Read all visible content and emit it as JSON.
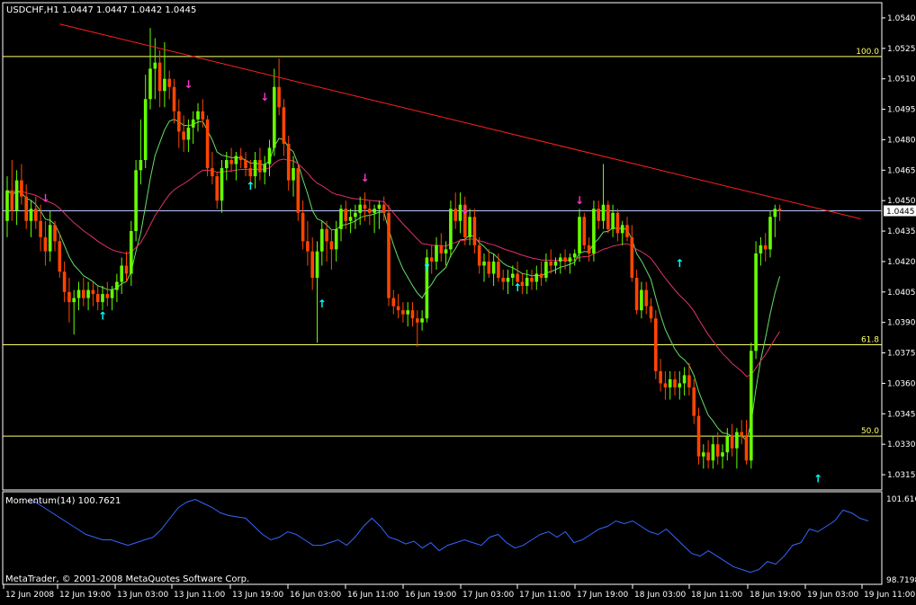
{
  "header": {
    "symbol_line": "USDCHF,H1  1.0447 1.0447 1.0442 1.0445",
    "momentum_label": "Momentum(14) 100.7621",
    "copyright": "MetaTrader, © 2001-2008 MetaQuotes Software Corp."
  },
  "colors": {
    "background": "#000000",
    "frame": "#ffffff",
    "bull": "#66ff00",
    "bear": "#ff4500",
    "trendline": "#ff2020",
    "fib": "#ffff66",
    "price_line": "#b4c8ff",
    "ma_fast": "#66dd66",
    "ma_slow": "#e0306a",
    "arrow_up": "#00ffff",
    "arrow_down": "#ff33cc",
    "momentum": "#3366ff"
  },
  "chart_data": [
    {
      "type": "candlestick",
      "symbol": "USDCHF",
      "timeframe": "H1",
      "ylim": [
        1.03075,
        1.05475
      ],
      "x_tick_labels": [
        "12 Jun 2008",
        "12 Jun 19:00",
        "13 Jun 03:00",
        "13 Jun 11:00",
        "13 Jun 19:00",
        "16 Jun 03:00",
        "16 Jun 11:00",
        "16 Jun 19:00",
        "17 Jun 03:00",
        "17 Jun 11:00",
        "17 Jun 19:00",
        "18 Jun 03:00",
        "18 Jun 11:00",
        "18 Jun 19:00",
        "19 Jun 03:00",
        "19 Jun 11:00"
      ],
      "y_tick_labels": [
        "1.0540",
        "1.0525",
        "1.0510",
        "1.0495",
        "1.0480",
        "1.0465",
        "1.0450",
        "1.0435",
        "1.0420",
        "1.0405",
        "1.0390",
        "1.0375",
        "1.0360",
        "1.0345",
        "1.0330",
        "1.0315"
      ],
      "y_tick_values": [
        1.054,
        1.0525,
        1.051,
        1.0495,
        1.048,
        1.0465,
        1.045,
        1.0435,
        1.042,
        1.0405,
        1.039,
        1.0375,
        1.036,
        1.0345,
        1.033,
        1.0315
      ],
      "current_price": {
        "value": 1.0445,
        "label": "1.0445"
      },
      "fib_levels": [
        {
          "label": "100.0",
          "value": 1.0521
        },
        {
          "label": "61.8",
          "value": 1.0379
        },
        {
          "label": "50.0",
          "value": 1.0334
        }
      ],
      "trendline": {
        "from": {
          "bar": 11,
          "price": 1.0537
        },
        "to": {
          "bar": 179,
          "price": 1.0441
        }
      },
      "candles": [
        [
          1.044,
          1.0462,
          1.0432,
          1.0455
        ],
        [
          1.0455,
          1.047,
          1.044,
          1.0445
        ],
        [
          1.0445,
          1.0465,
          1.0438,
          1.046
        ],
        [
          1.046,
          1.0468,
          1.0448,
          1.0452
        ],
        [
          1.0452,
          1.0458,
          1.0436,
          1.044
        ],
        [
          1.044,
          1.045,
          1.0432,
          1.0446
        ],
        [
          1.0446,
          1.0452,
          1.0436,
          1.044
        ],
        [
          1.044,
          1.0448,
          1.0425,
          1.0432
        ],
        [
          1.0432,
          1.044,
          1.0418,
          1.0425
        ],
        [
          1.0425,
          1.0445,
          1.042,
          1.0438
        ],
        [
          1.0438,
          1.044,
          1.0425,
          1.043
        ],
        [
          1.043,
          1.0434,
          1.0412,
          1.0415
        ],
        [
          1.0415,
          1.042,
          1.04,
          1.0405
        ],
        [
          1.0405,
          1.0412,
          1.039,
          1.04
        ],
        [
          1.04,
          1.0406,
          1.0384,
          1.0402
        ],
        [
          1.0402,
          1.041,
          1.0396,
          1.0406
        ],
        [
          1.0406,
          1.0412,
          1.0398,
          1.0402
        ],
        [
          1.0402,
          1.041,
          1.0396,
          1.0406
        ],
        [
          1.0406,
          1.041,
          1.0398,
          1.0404
        ],
        [
          1.0404,
          1.0408,
          1.0396,
          1.04
        ],
        [
          1.04,
          1.0408,
          1.0396,
          1.0404
        ],
        [
          1.0404,
          1.041,
          1.0398,
          1.0402
        ],
        [
          1.0402,
          1.0408,
          1.0396,
          1.0406
        ],
        [
          1.0406,
          1.0414,
          1.04,
          1.041
        ],
        [
          1.041,
          1.0422,
          1.0404,
          1.0418
        ],
        [
          1.0418,
          1.0425,
          1.041,
          1.0414
        ],
        [
          1.0414,
          1.044,
          1.0408,
          1.0435
        ],
        [
          1.0435,
          1.047,
          1.043,
          1.0465
        ],
        [
          1.0465,
          1.049,
          1.0458,
          1.047
        ],
        [
          1.047,
          1.0512,
          1.0466,
          1.05
        ],
        [
          1.05,
          1.0535,
          1.0495,
          1.0515
        ],
        [
          1.0515,
          1.053,
          1.05,
          1.0518
        ],
        [
          1.0518,
          1.0524,
          1.0496,
          1.0504
        ],
        [
          1.0504,
          1.0528,
          1.0496,
          1.051
        ],
        [
          1.051,
          1.0514,
          1.05,
          1.0506
        ],
        [
          1.0506,
          1.051,
          1.0488,
          1.0494
        ],
        [
          1.0494,
          1.05,
          1.0476,
          1.0484
        ],
        [
          1.0484,
          1.0492,
          1.0474,
          1.048
        ],
        [
          1.048,
          1.049,
          1.0474,
          1.0486
        ],
        [
          1.0486,
          1.0494,
          1.0478,
          1.049
        ],
        [
          1.049,
          1.0498,
          1.0484,
          1.0494
        ],
        [
          1.0494,
          1.05,
          1.0486,
          1.049
        ],
        [
          1.049,
          1.0492,
          1.0462,
          1.0466
        ],
        [
          1.0466,
          1.0474,
          1.0458,
          1.0462
        ],
        [
          1.0462,
          1.0464,
          1.0446,
          1.045
        ],
        [
          1.045,
          1.047,
          1.0444,
          1.0466
        ],
        [
          1.0466,
          1.0474,
          1.046,
          1.047
        ],
        [
          1.047,
          1.0476,
          1.0464,
          1.0468
        ],
        [
          1.0468,
          1.0474,
          1.046,
          1.0472
        ],
        [
          1.0472,
          1.0476,
          1.0466,
          1.047
        ],
        [
          1.047,
          1.0474,
          1.0462,
          1.0466
        ],
        [
          1.0466,
          1.047,
          1.0458,
          1.0462
        ],
        [
          1.0462,
          1.0474,
          1.0456,
          1.047
        ],
        [
          1.047,
          1.0476,
          1.046,
          1.0464
        ],
        [
          1.0464,
          1.0472,
          1.0458,
          1.0468
        ],
        [
          1.0468,
          1.048,
          1.0462,
          1.0476
        ],
        [
          1.0476,
          1.0515,
          1.0472,
          1.0506
        ],
        [
          1.0506,
          1.052,
          1.0492,
          1.0496
        ],
        [
          1.0496,
          1.05,
          1.0472,
          1.0478
        ],
        [
          1.0478,
          1.0482,
          1.0455,
          1.046
        ],
        [
          1.046,
          1.0472,
          1.0452,
          1.0466
        ],
        [
          1.0466,
          1.0468,
          1.044,
          1.0444
        ],
        [
          1.0444,
          1.045,
          1.0426,
          1.043
        ],
        [
          1.043,
          1.044,
          1.0418,
          1.0425
        ],
        [
          1.0425,
          1.0432,
          1.0406,
          1.0412
        ],
        [
          1.0412,
          1.043,
          1.038,
          1.0425
        ],
        [
          1.0425,
          1.044,
          1.0418,
          1.0436
        ],
        [
          1.0436,
          1.044,
          1.042,
          1.043
        ],
        [
          1.043,
          1.0436,
          1.0416,
          1.0426
        ],
        [
          1.0426,
          1.044,
          1.042,
          1.0436
        ],
        [
          1.0436,
          1.0448,
          1.043,
          1.0446
        ],
        [
          1.0446,
          1.045,
          1.0436,
          1.044
        ],
        [
          1.044,
          1.0446,
          1.0434,
          1.0442
        ],
        [
          1.0442,
          1.0448,
          1.0436,
          1.0444
        ],
        [
          1.0444,
          1.0452,
          1.0438,
          1.0448
        ],
        [
          1.0448,
          1.0454,
          1.044,
          1.0446
        ],
        [
          1.0446,
          1.045,
          1.0438,
          1.0444
        ],
        [
          1.0444,
          1.0448,
          1.0434,
          1.0446
        ],
        [
          1.0446,
          1.045,
          1.0436,
          1.0448
        ],
        [
          1.0448,
          1.0452,
          1.044,
          1.0444
        ],
        [
          1.0444,
          1.0448,
          1.0398,
          1.0402
        ],
        [
          1.0402,
          1.0406,
          1.0394,
          1.0398
        ],
        [
          1.0398,
          1.0404,
          1.0392,
          1.0396
        ],
        [
          1.0396,
          1.04,
          1.039,
          1.0394
        ],
        [
          1.0394,
          1.04,
          1.0388,
          1.0396
        ],
        [
          1.0396,
          1.04,
          1.0388,
          1.0392
        ],
        [
          1.0392,
          1.0396,
          1.0378,
          1.039
        ],
        [
          1.039,
          1.0396,
          1.0386,
          1.0392
        ],
        [
          1.0392,
          1.0426,
          1.039,
          1.0422
        ],
        [
          1.0422,
          1.0428,
          1.0414,
          1.042
        ],
        [
          1.042,
          1.0432,
          1.0416,
          1.0428
        ],
        [
          1.0428,
          1.0434,
          1.042,
          1.0424
        ],
        [
          1.0424,
          1.043,
          1.0418,
          1.0426
        ],
        [
          1.0426,
          1.045,
          1.0422,
          1.0446
        ],
        [
          1.0446,
          1.0454,
          1.0436,
          1.044
        ],
        [
          1.044,
          1.0454,
          1.0434,
          1.0448
        ],
        [
          1.0448,
          1.0452,
          1.0428,
          1.0432
        ],
        [
          1.0432,
          1.0446,
          1.0428,
          1.0442
        ],
        [
          1.0442,
          1.0446,
          1.0424,
          1.0428
        ],
        [
          1.0428,
          1.0432,
          1.0414,
          1.0418
        ],
        [
          1.0418,
          1.0424,
          1.041,
          1.042
        ],
        [
          1.042,
          1.0426,
          1.0412,
          1.0414
        ],
        [
          1.0414,
          1.0424,
          1.0408,
          1.042
        ],
        [
          1.042,
          1.0424,
          1.041,
          1.0412
        ],
        [
          1.0412,
          1.0416,
          1.0406,
          1.041
        ],
        [
          1.041,
          1.0416,
          1.0404,
          1.0412
        ],
        [
          1.0412,
          1.0418,
          1.0408,
          1.0414
        ],
        [
          1.0414,
          1.042,
          1.0408,
          1.041
        ],
        [
          1.041,
          1.0414,
          1.0404,
          1.0408
        ],
        [
          1.0408,
          1.0416,
          1.0404,
          1.0412
        ],
        [
          1.0412,
          1.0416,
          1.0406,
          1.041
        ],
        [
          1.041,
          1.0418,
          1.0406,
          1.0414
        ],
        [
          1.0414,
          1.042,
          1.0408,
          1.0412
        ],
        [
          1.0412,
          1.0424,
          1.041,
          1.042
        ],
        [
          1.042,
          1.0426,
          1.0414,
          1.0418
        ],
        [
          1.0418,
          1.0422,
          1.0414,
          1.042
        ],
        [
          1.042,
          1.0424,
          1.0414,
          1.0422
        ],
        [
          1.0422,
          1.0426,
          1.0416,
          1.042
        ],
        [
          1.042,
          1.0424,
          1.0414,
          1.0422
        ],
        [
          1.0422,
          1.0426,
          1.0418,
          1.0424
        ],
        [
          1.0424,
          1.0446,
          1.042,
          1.0442
        ],
        [
          1.0442,
          1.0444,
          1.0426,
          1.0428
        ],
        [
          1.0428,
          1.0432,
          1.042,
          1.0424
        ],
        [
          1.0424,
          1.045,
          1.042,
          1.0446
        ],
        [
          1.0446,
          1.045,
          1.0436,
          1.044
        ],
        [
          1.044,
          1.0468,
          1.0436,
          1.0448
        ],
        [
          1.0448,
          1.045,
          1.0434,
          1.0436
        ],
        [
          1.0436,
          1.0448,
          1.0432,
          1.0444
        ],
        [
          1.0444,
          1.0446,
          1.043,
          1.0434
        ],
        [
          1.0434,
          1.044,
          1.0428,
          1.0438
        ],
        [
          1.0438,
          1.0442,
          1.043,
          1.0432
        ],
        [
          1.0432,
          1.0438,
          1.041,
          1.0412
        ],
        [
          1.0412,
          1.0416,
          1.0394,
          1.0396
        ],
        [
          1.0396,
          1.041,
          1.0392,
          1.0406
        ],
        [
          1.0406,
          1.041,
          1.0394,
          1.0398
        ],
        [
          1.0398,
          1.0402,
          1.039,
          1.0392
        ],
        [
          1.0392,
          1.0396,
          1.0362,
          1.0366
        ],
        [
          1.0366,
          1.0372,
          1.0356,
          1.036
        ],
        [
          1.036,
          1.0366,
          1.0352,
          1.0358
        ],
        [
          1.0358,
          1.0366,
          1.0352,
          1.0362
        ],
        [
          1.0362,
          1.0366,
          1.0354,
          1.0358
        ],
        [
          1.0358,
          1.0366,
          1.0352,
          1.036
        ],
        [
          1.036,
          1.0368,
          1.0354,
          1.0364
        ],
        [
          1.0364,
          1.037,
          1.0354,
          1.0358
        ],
        [
          1.0358,
          1.0362,
          1.034,
          1.0344
        ],
        [
          1.0344,
          1.0348,
          1.032,
          1.0324
        ],
        [
          1.0324,
          1.033,
          1.0318,
          1.0326
        ],
        [
          1.0326,
          1.0332,
          1.0318,
          1.0322
        ],
        [
          1.0322,
          1.0334,
          1.0318,
          1.033
        ],
        [
          1.033,
          1.0336,
          1.032,
          1.0324
        ],
        [
          1.0324,
          1.033,
          1.0318,
          1.0326
        ],
        [
          1.0326,
          1.0338,
          1.0322,
          1.0334
        ],
        [
          1.0334,
          1.034,
          1.0324,
          1.0328
        ],
        [
          1.0328,
          1.0338,
          1.0318,
          1.0336
        ],
        [
          1.0336,
          1.0342,
          1.033,
          1.0334
        ],
        [
          1.0334,
          1.0342,
          1.032,
          1.0322
        ],
        [
          1.0322,
          1.038,
          1.0318,
          1.0376
        ],
        [
          1.0376,
          1.043,
          1.0372,
          1.0424
        ],
        [
          1.0424,
          1.0432,
          1.0418,
          1.0428
        ],
        [
          1.0428,
          1.0434,
          1.042,
          1.0426
        ],
        [
          1.0426,
          1.0445,
          1.0422,
          1.0442
        ],
        [
          1.0442,
          1.0448,
          1.0432,
          1.0446
        ],
        [
          1.0446,
          1.0448,
          1.044,
          1.0445
        ]
      ],
      "up_arrows": [
        {
          "bar": 20,
          "price": 1.0394
        },
        {
          "bar": 51,
          "price": 1.0458
        },
        {
          "bar": 66,
          "price": 1.04
        },
        {
          "bar": 88,
          "price": 1.0418
        },
        {
          "bar": 107,
          "price": 1.0408
        },
        {
          "bar": 141,
          "price": 1.042
        },
        {
          "bar": 170,
          "price": 1.0314
        }
      ],
      "down_arrows": [
        {
          "bar": 8,
          "price": 1.0452
        },
        {
          "bar": 38,
          "price": 1.0508
        },
        {
          "bar": 54,
          "price": 1.0502
        },
        {
          "bar": 75,
          "price": 1.0462
        },
        {
          "bar": 96,
          "price": 1.0446
        },
        {
          "bar": 120,
          "price": 1.0451
        }
      ]
    },
    {
      "type": "line",
      "name": "Momentum(14)",
      "last_value": 100.7621,
      "ylim": [
        98.7198,
        101.6165
      ],
      "y_tick_labels": [
        "101.6165",
        "98.7198"
      ],
      "values": [
        101.55,
        101.5,
        101.3,
        101.1,
        100.9,
        100.7,
        100.5,
        100.3,
        100.2,
        100.1,
        100.1,
        100.0,
        99.9,
        100.0,
        100.1,
        100.2,
        100.5,
        100.9,
        101.3,
        101.5,
        101.6,
        101.45,
        101.3,
        101.1,
        101.0,
        100.95,
        100.9,
        100.6,
        100.3,
        100.1,
        100.2,
        100.4,
        100.3,
        100.1,
        99.9,
        99.9,
        100.0,
        100.1,
        99.9,
        100.2,
        100.6,
        100.9,
        100.6,
        100.2,
        100.1,
        99.95,
        100.05,
        99.8,
        100.0,
        99.7,
        99.9,
        100.0,
        100.1,
        100.0,
        99.9,
        100.2,
        100.3,
        100.0,
        99.8,
        99.9,
        100.1,
        100.3,
        100.4,
        100.2,
        100.4,
        100.0,
        100.1,
        100.3,
        100.5,
        100.6,
        100.8,
        100.7,
        100.8,
        100.6,
        100.4,
        100.3,
        100.5,
        100.2,
        99.9,
        99.6,
        99.5,
        99.7,
        99.5,
        99.3,
        99.1,
        99.0,
        98.9,
        99.0,
        99.3,
        99.2,
        99.5,
        99.9,
        100.0,
        100.5,
        100.4,
        100.6,
        100.8,
        101.2,
        101.1,
        100.9,
        100.8
      ]
    }
  ]
}
